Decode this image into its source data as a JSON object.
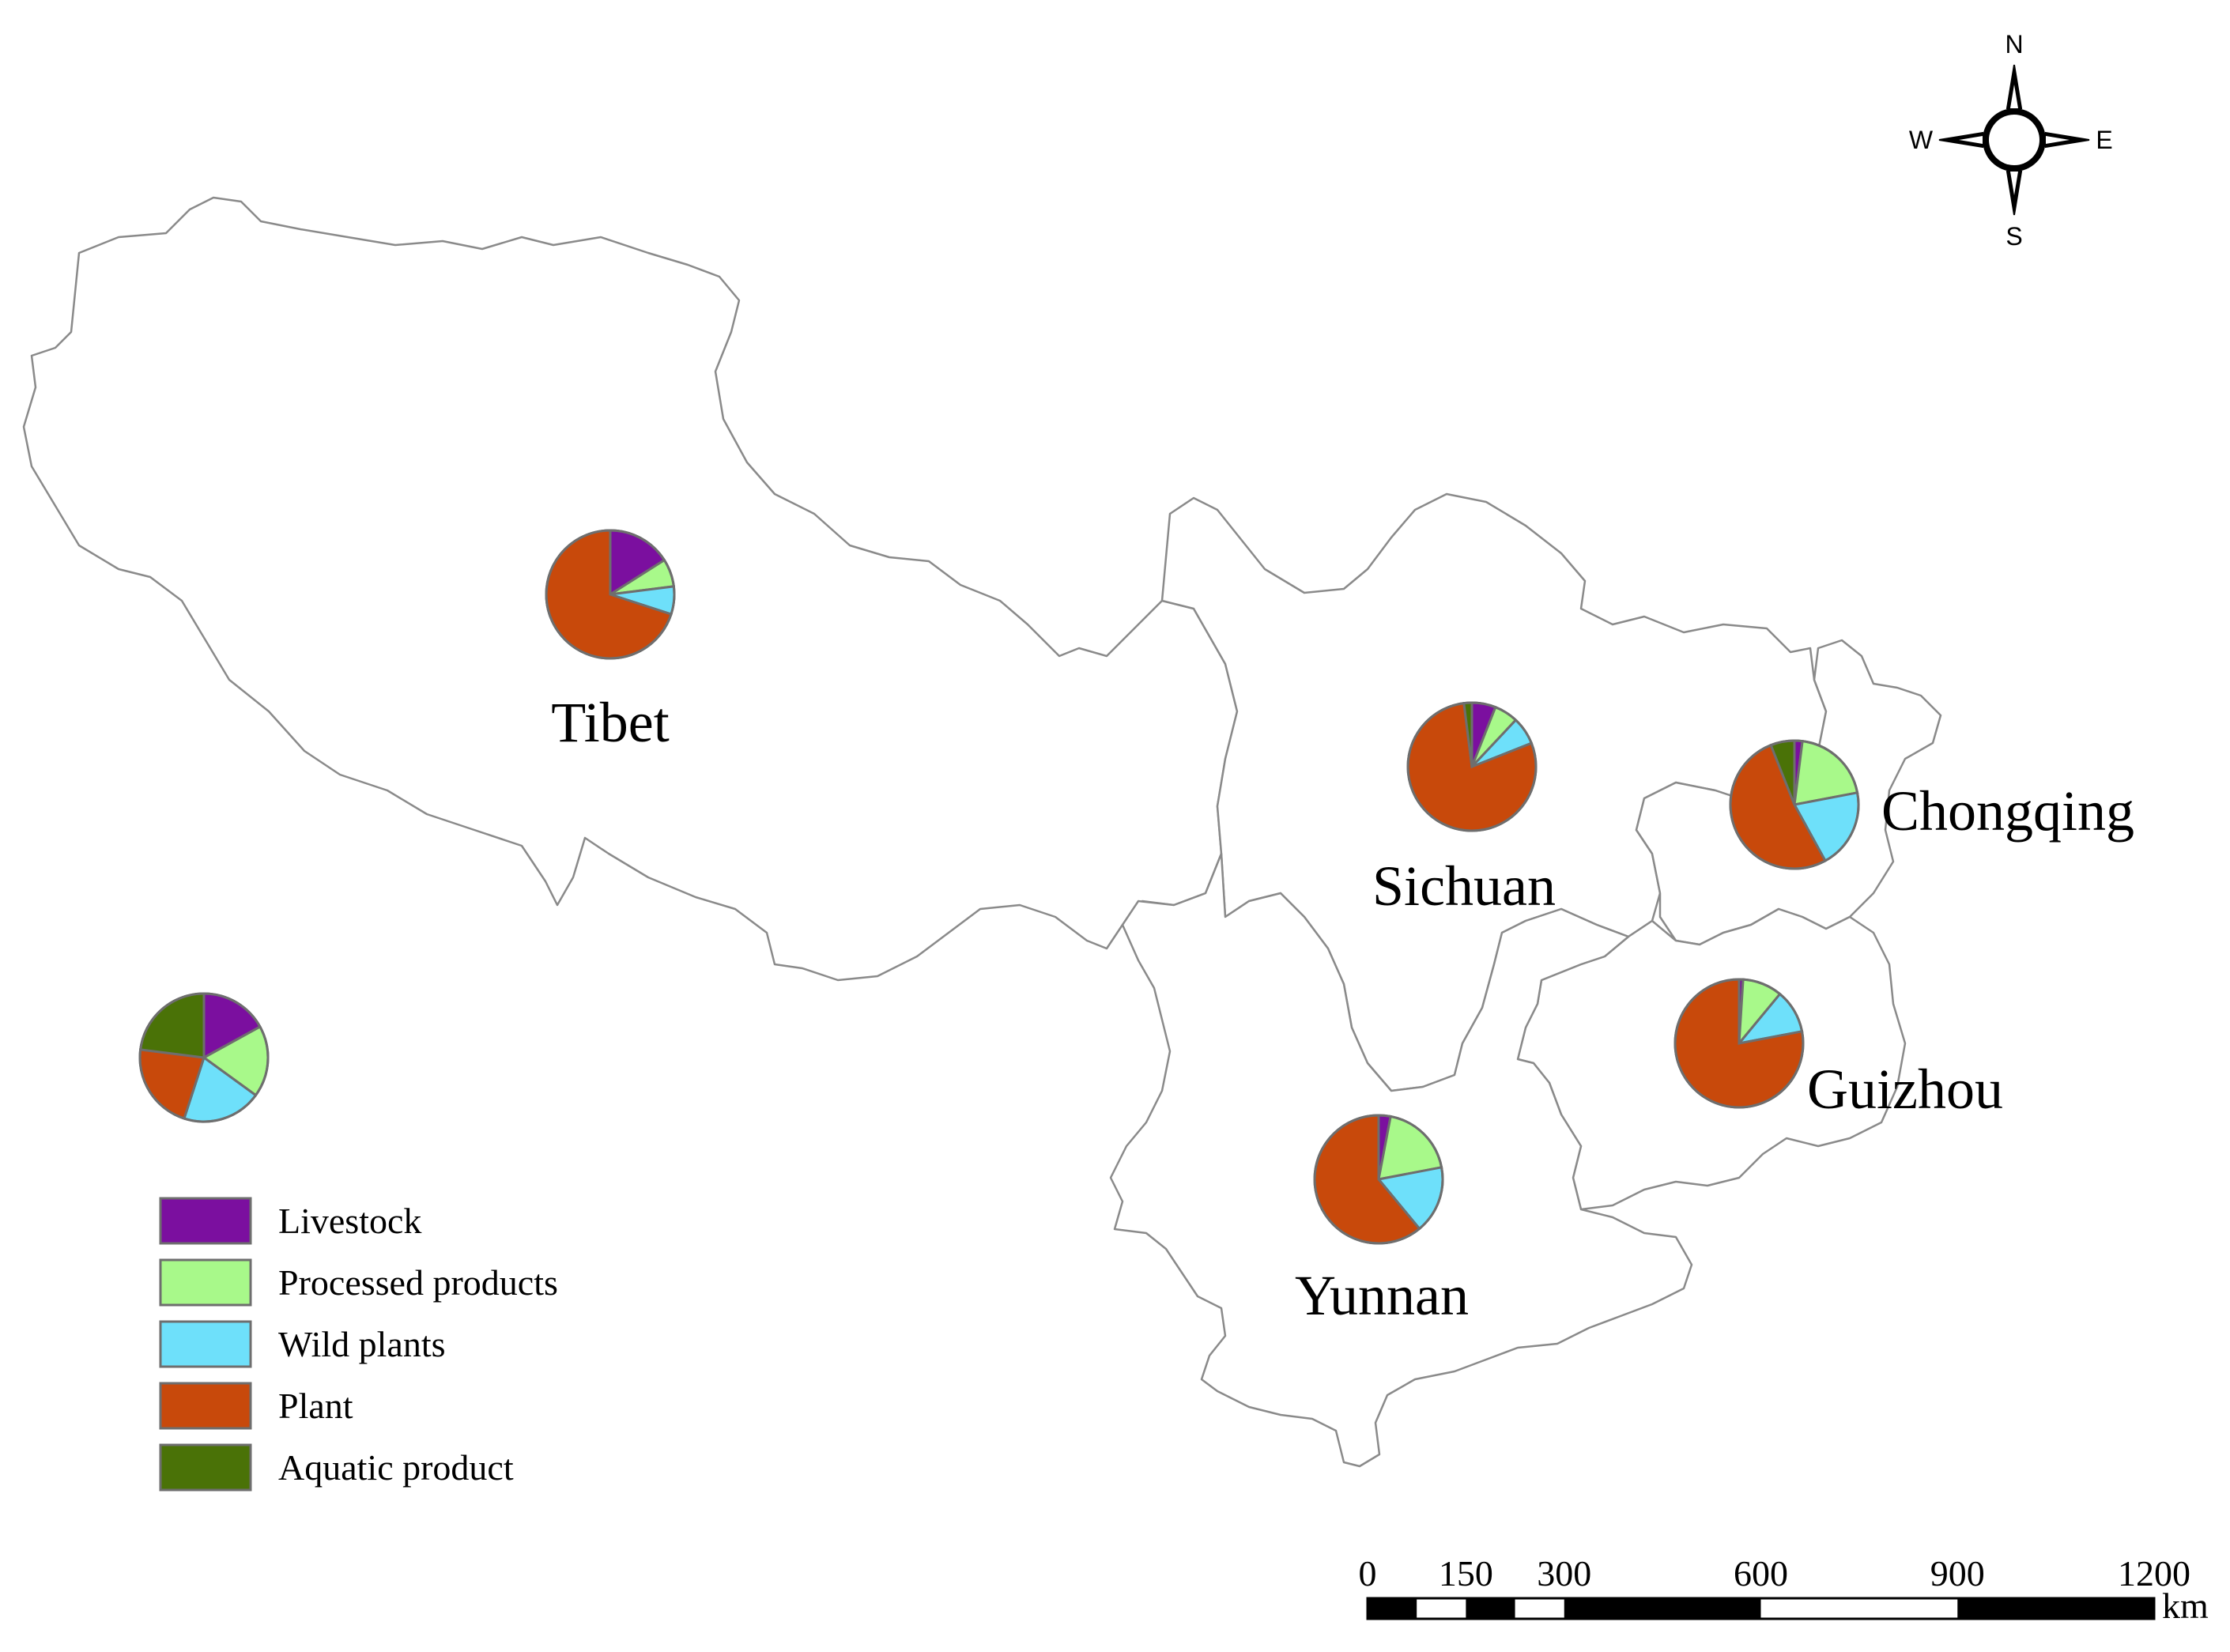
{
  "map": {
    "provinces": [
      {
        "id": "tibet",
        "label": "Tibet",
        "shares": [
          0.16,
          0.07,
          0.07,
          0.7,
          0.0
        ]
      },
      {
        "id": "sichuan",
        "label": "Sichuan",
        "shares": [
          0.06,
          0.06,
          0.07,
          0.79,
          0.02
        ]
      },
      {
        "id": "chongqing",
        "label": "Chongqing",
        "shares": [
          0.02,
          0.2,
          0.2,
          0.52,
          0.06
        ]
      },
      {
        "id": "guizhou",
        "label": "Guizhou",
        "shares": [
          0.01,
          0.1,
          0.11,
          0.78,
          0.0
        ]
      },
      {
        "id": "yunnan",
        "label": "Yunnan",
        "shares": [
          0.03,
          0.19,
          0.17,
          0.61,
          0.0
        ]
      },
      {
        "id": "overall",
        "label": "",
        "shares": [
          0.17,
          0.18,
          0.2,
          0.22,
          0.23
        ]
      }
    ]
  },
  "legend": {
    "items": [
      {
        "label": "Livestock",
        "color": "#7b0f9f"
      },
      {
        "label": "Processed products",
        "color": "#a8f98a"
      },
      {
        "label": "Wild plants",
        "color": "#6ee0fa"
      },
      {
        "label": "Plant",
        "color": "#c8490b"
      },
      {
        "label": "Aquatic product",
        "color": "#4a7207"
      }
    ]
  },
  "compass": {
    "n": "N",
    "s": "S",
    "e": "E",
    "w": "W"
  },
  "scale_bar": {
    "ticks": [
      0,
      150,
      300,
      600,
      900,
      1200
    ],
    "tick_labels": [
      "0",
      "150",
      "300",
      "600",
      "900",
      "1200"
    ],
    "unit": "km"
  }
}
